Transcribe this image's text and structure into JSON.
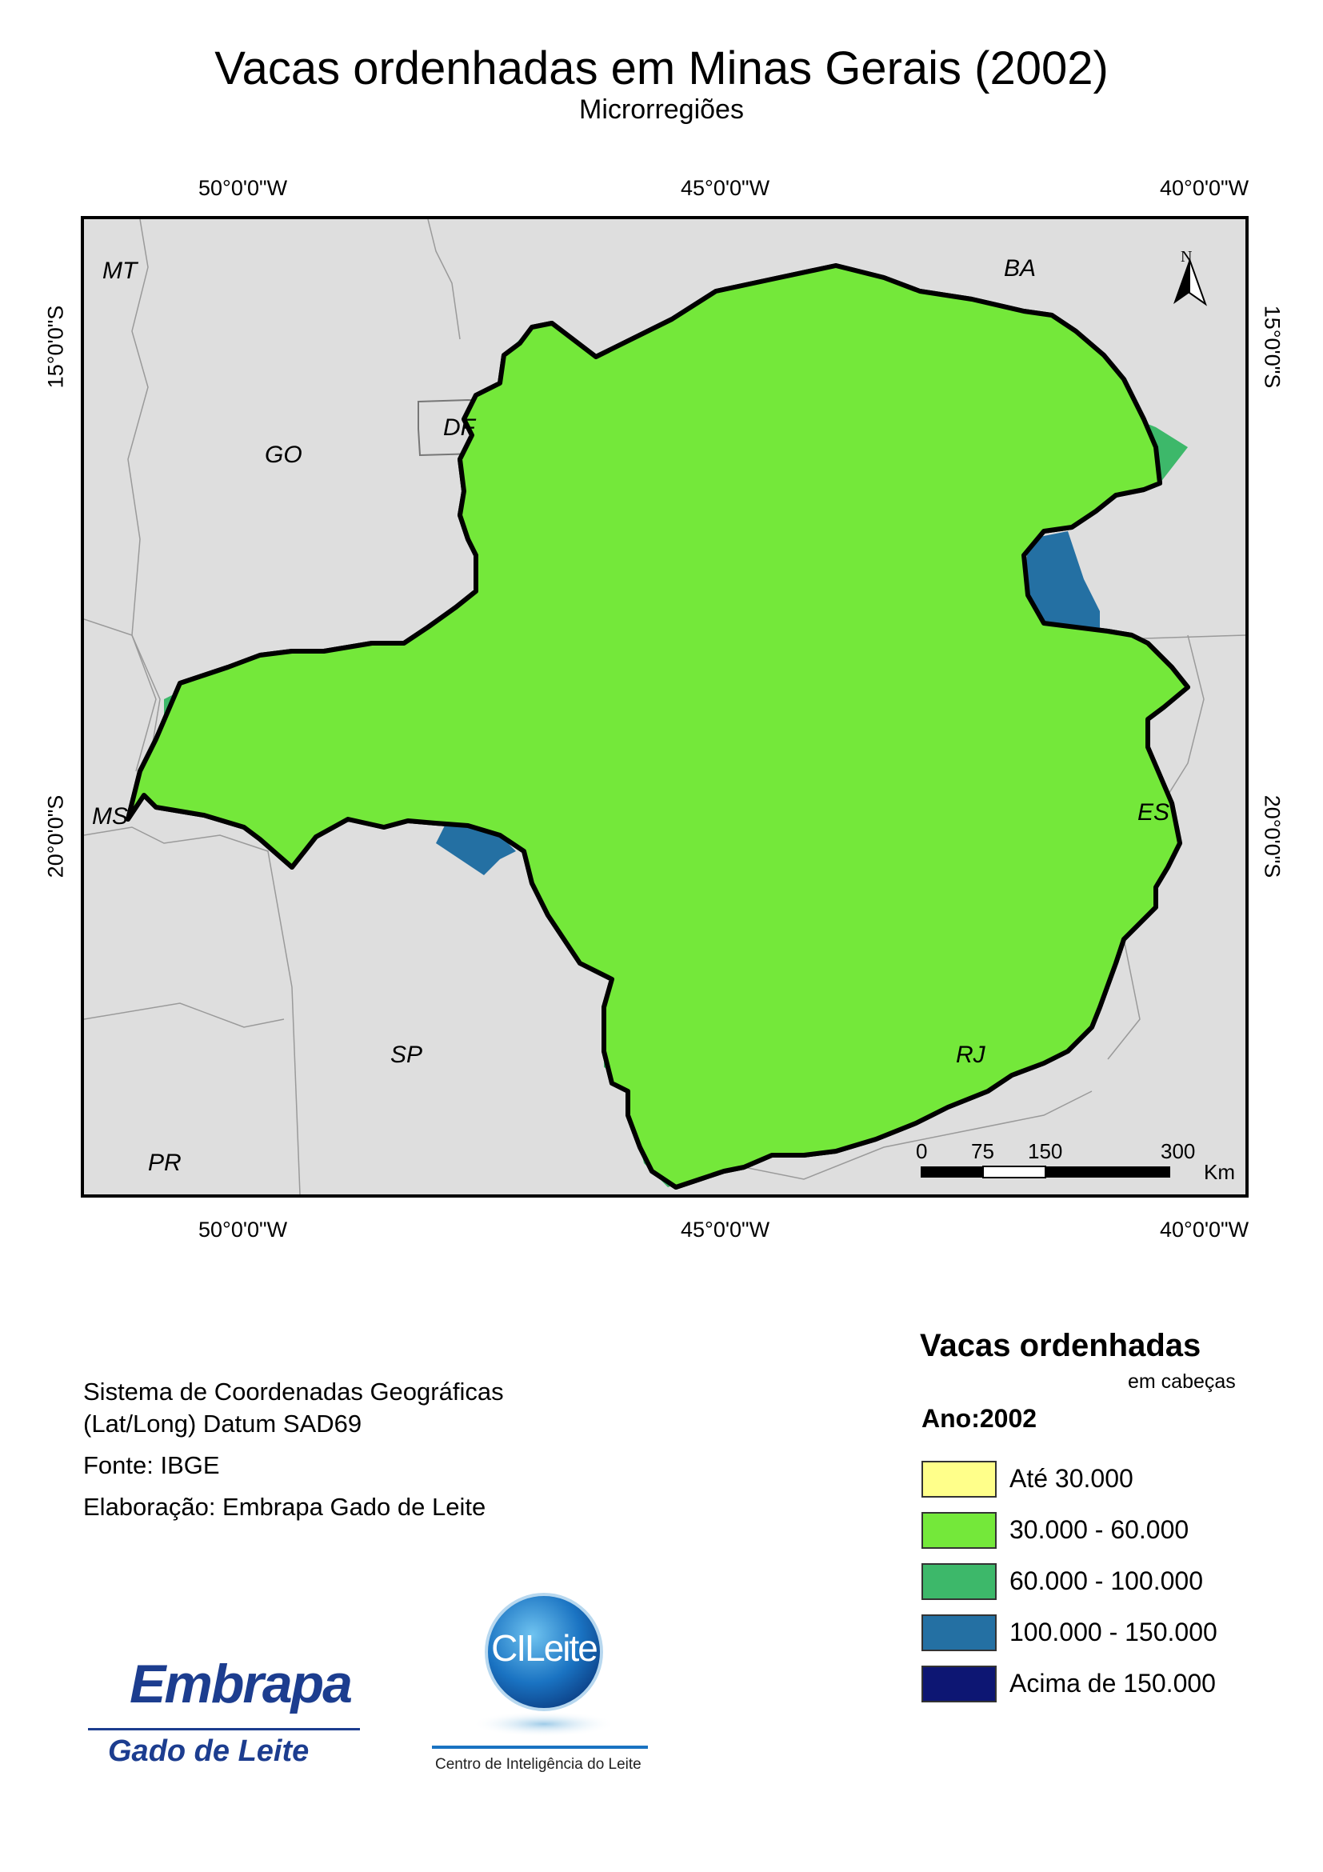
{
  "title": "Vacas ordenhadas em Minas Gerais (2002)",
  "subtitle": "Microrregiões",
  "graticule": {
    "longitude_labels": [
      "50°0'0\"W",
      "45°0'0\"W",
      "40°0'0\"W"
    ],
    "latitude_labels": [
      "15°0'0\"S",
      "20°0'0\"S"
    ]
  },
  "state_labels": [
    "MT",
    "BA",
    "GO",
    "DF",
    "MS",
    "ES",
    "SP",
    "RJ",
    "PR"
  ],
  "north_arrow": "N",
  "scale_bar": {
    "ticks": [
      "0",
      "75",
      "150",
      "300"
    ],
    "unit": "Km"
  },
  "notes": {
    "line1": "Sistema de Coordenadas Geográficas",
    "line2": "(Lat/Long) Datum SAD69",
    "source": "Fonte: IBGE",
    "author": "Elaboração: Embrapa Gado de Leite"
  },
  "legend": {
    "title": "Vacas ordenhadas",
    "unit": "em cabeças",
    "year": "Ano:2002",
    "classes": [
      {
        "label": "Até 30.000",
        "color": "#ffff8a"
      },
      {
        "label": "30.000 - 60.000",
        "color": "#74e83a"
      },
      {
        "label": "60.000 - 100.000",
        "color": "#3db86a"
      },
      {
        "label": "100.000 - 150.000",
        "color": "#2470a3"
      },
      {
        "label": "Acima de 150.000",
        "color": "#0d1673"
      }
    ]
  },
  "logos": {
    "embrapa": "Embrapa",
    "embrapa_sub": "Gado de Leite",
    "cileite": "CILeite",
    "cileite_sub": "Centro de Inteligência do Leite"
  }
}
